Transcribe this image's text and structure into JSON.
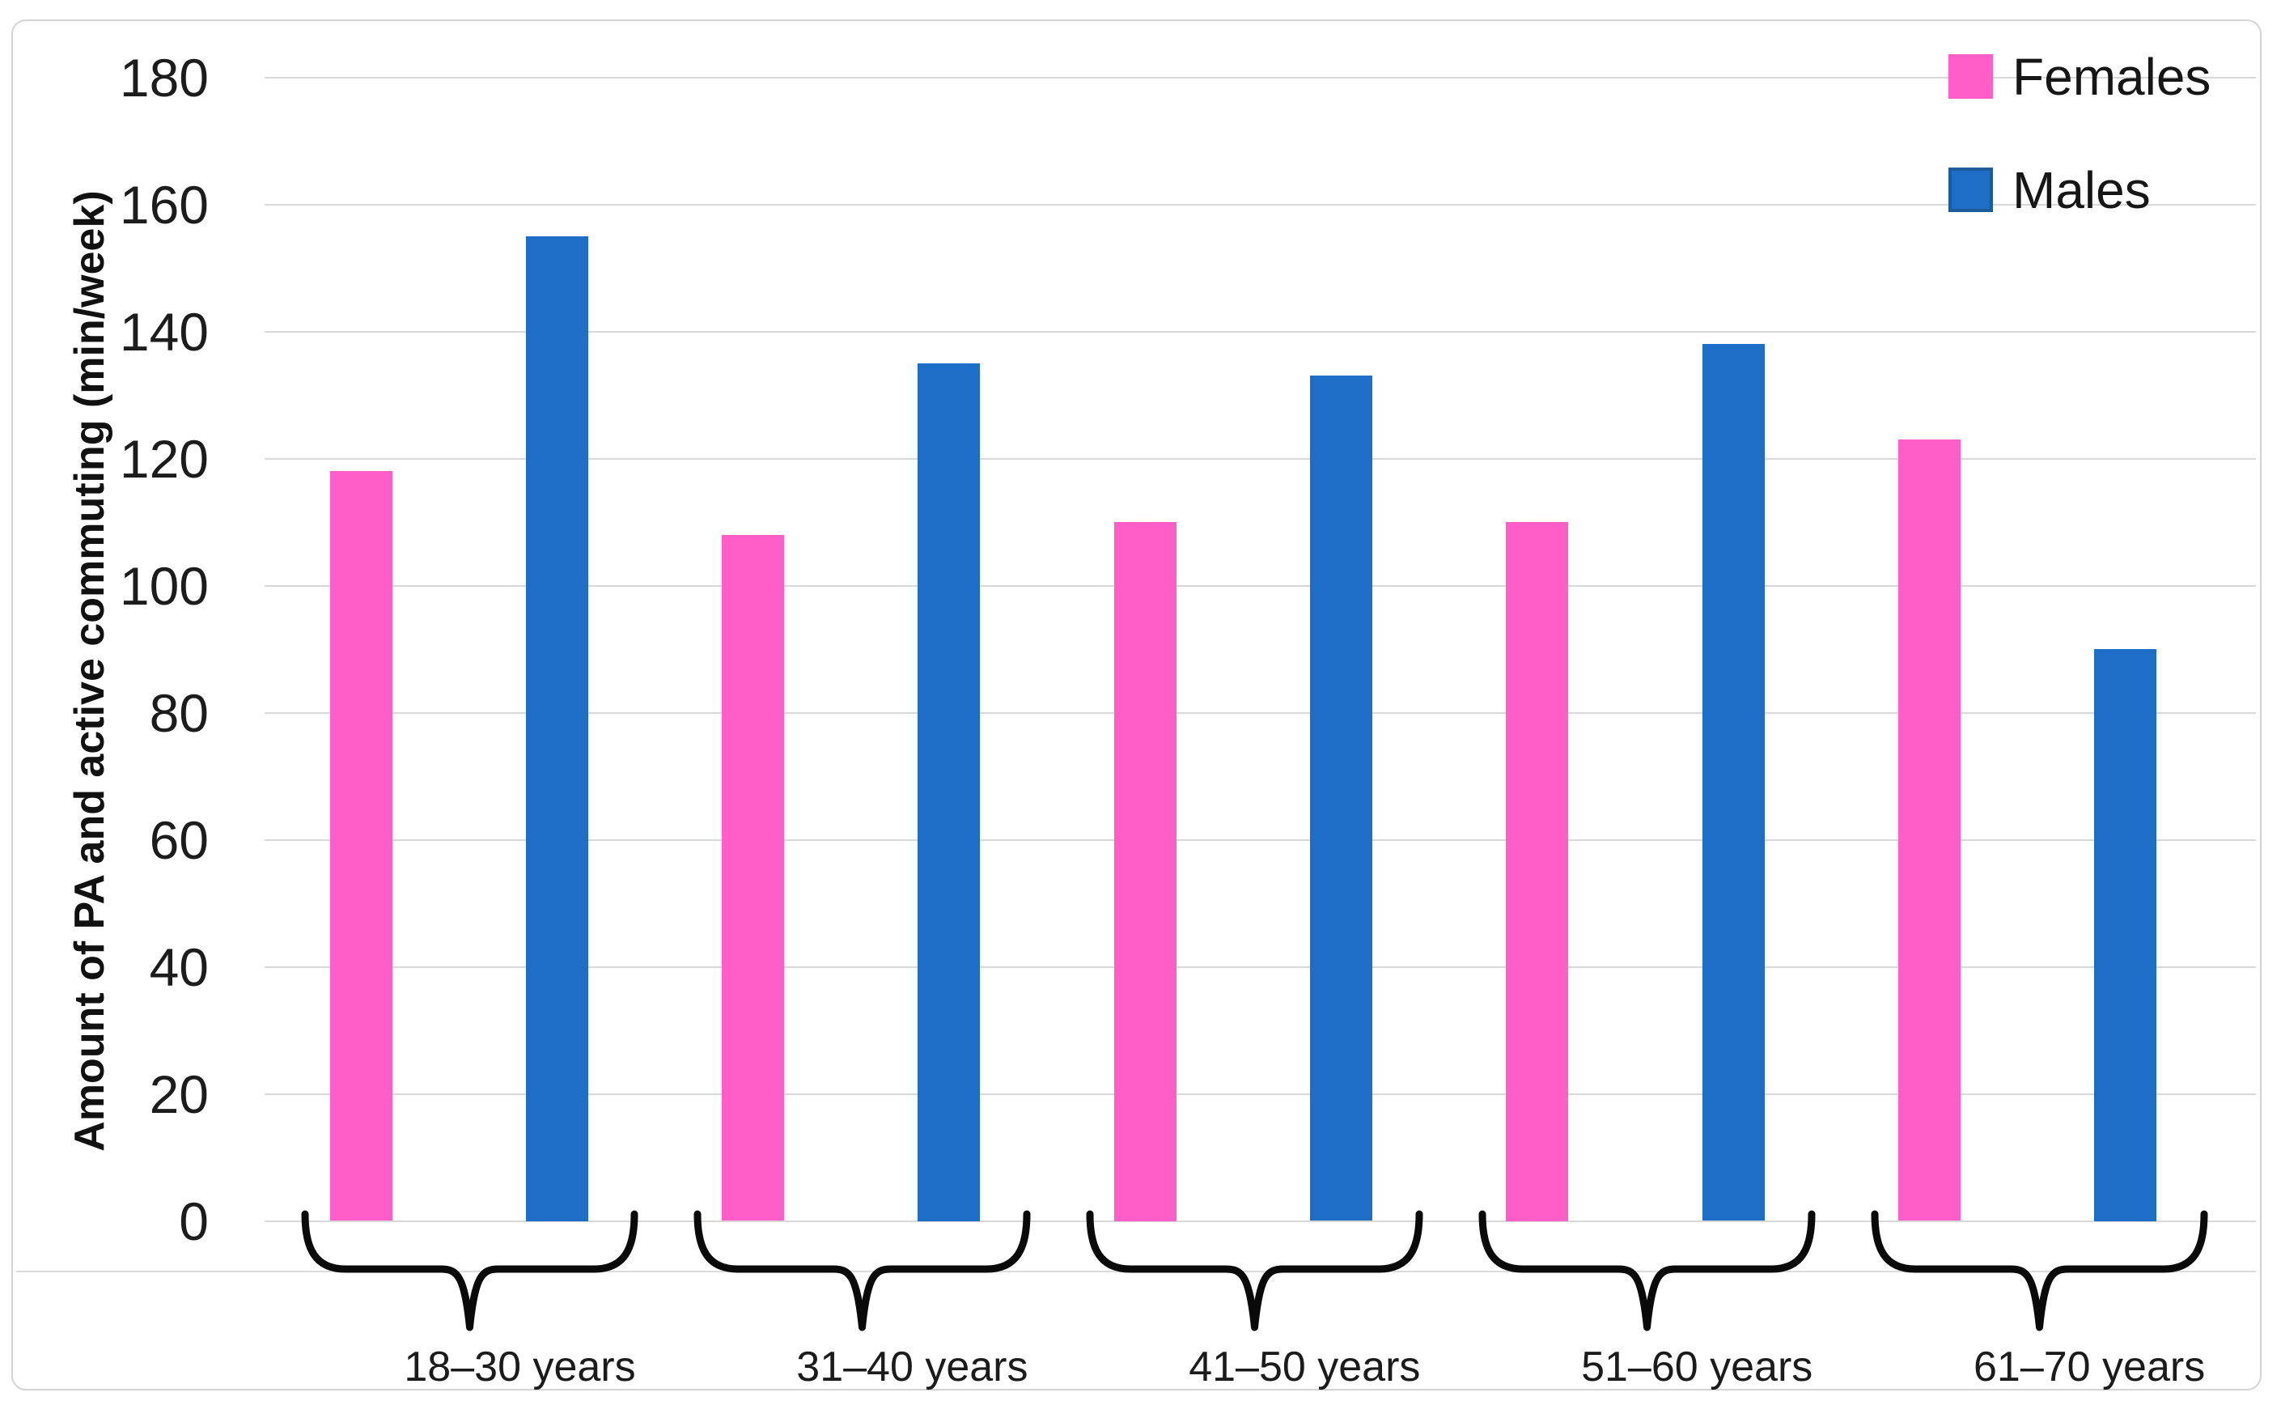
{
  "chart_data": {
    "type": "bar",
    "categories": [
      "18–30 years",
      "31–40 years",
      "41–50 years",
      "51–60 years",
      "61–70 years"
    ],
    "series": [
      {
        "name": "Females",
        "color": "#ff5ec8",
        "border_color": "",
        "values": [
          118,
          108,
          110,
          110,
          123
        ]
      },
      {
        "name": "Males",
        "color": "#1e6ec8",
        "border_color": "#1d5b9b",
        "values": [
          155,
          135,
          133,
          138,
          90
        ]
      }
    ],
    "title": "",
    "xlabel": "",
    "ylabel": "Amount of PA and active commuting (min/week)",
    "ylim": [
      0,
      180
    ],
    "yticks": [
      0,
      20,
      40,
      60,
      80,
      100,
      120,
      140,
      160,
      180
    ],
    "grid": true,
    "legend_position": "top-right",
    "legend_entries": [
      "Females",
      "Males"
    ]
  },
  "style": {
    "gridline_color": "#d8d8d8",
    "axis_text_color": "#1c1c1c",
    "brace_color": "#0a0a0a",
    "background": "#ffffff"
  }
}
